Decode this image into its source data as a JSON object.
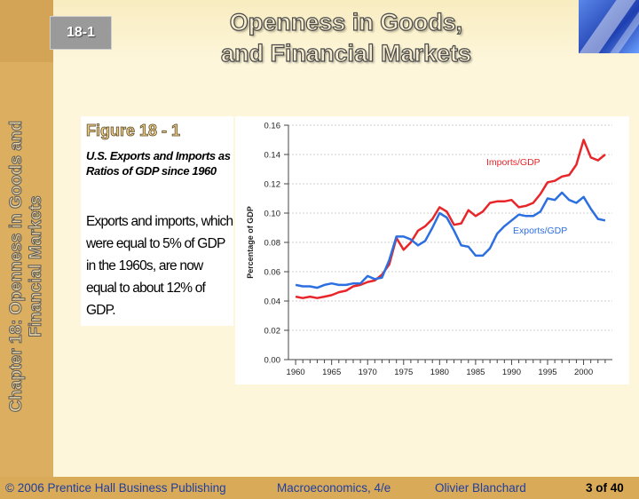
{
  "slide": {
    "number": "18-1",
    "title_line1": "Openness in Goods,",
    "title_line2": "and Financial Markets",
    "side_title_line1": "Chapter 18: Openness in Goods and",
    "side_title_line2": "Financial Markets"
  },
  "caption": {
    "figure_label": "Figure 18 - 1",
    "subtitle": "U.S. Exports and Imports as Ratios of GDP since 1960",
    "description": "Exports and imports, which were equal to 5% of GDP in the 1960s, are now equal to about 12% of GDP."
  },
  "footer": {
    "copyright": "© 2006 Prentice Hall Business Publishing",
    "book": "Macroeconomics, 4/e",
    "author": "Olivier Blanchard",
    "page": "3 of 40"
  },
  "colors": {
    "imports": "#e8262a",
    "exports": "#2b6fe0"
  },
  "chart_data": {
    "type": "line",
    "xlabel": "",
    "ylabel": "Percentage of GDP",
    "xlim": [
      1959,
      2004
    ],
    "ylim": [
      0,
      0.16
    ],
    "x_ticks": [
      1960,
      1965,
      1970,
      1975,
      1980,
      1985,
      1990,
      1995,
      2000
    ],
    "y_ticks": [
      "0.00",
      "0.02",
      "0.04",
      "0.06",
      "0.08",
      "0.10",
      "0.12",
      "0.14",
      "0.16"
    ],
    "grid": true,
    "x": [
      1960,
      1961,
      1962,
      1963,
      1964,
      1965,
      1966,
      1967,
      1968,
      1969,
      1970,
      1971,
      1972,
      1973,
      1974,
      1975,
      1976,
      1977,
      1978,
      1979,
      1980,
      1981,
      1982,
      1983,
      1984,
      1985,
      1986,
      1987,
      1988,
      1989,
      1990,
      1991,
      1992,
      1993,
      1994,
      1995,
      1996,
      1997,
      1998,
      1999,
      2000,
      2001,
      2002,
      2003
    ],
    "series": [
      {
        "name": "Imports/GDP",
        "color": "#e8262a",
        "values": [
          0.043,
          0.042,
          0.043,
          0.042,
          0.043,
          0.044,
          0.046,
          0.047,
          0.05,
          0.051,
          0.053,
          0.054,
          0.058,
          0.065,
          0.083,
          0.075,
          0.08,
          0.088,
          0.091,
          0.096,
          0.104,
          0.101,
          0.092,
          0.093,
          0.102,
          0.098,
          0.101,
          0.107,
          0.108,
          0.108,
          0.109,
          0.104,
          0.105,
          0.107,
          0.113,
          0.121,
          0.122,
          0.125,
          0.126,
          0.133,
          0.15,
          0.138,
          0.136,
          0.14
        ]
      },
      {
        "name": "Exports/GDP",
        "color": "#2b6fe0",
        "values": [
          0.051,
          0.05,
          0.05,
          0.049,
          0.051,
          0.052,
          0.051,
          0.051,
          0.052,
          0.052,
          0.057,
          0.055,
          0.056,
          0.068,
          0.084,
          0.084,
          0.082,
          0.078,
          0.081,
          0.09,
          0.1,
          0.097,
          0.088,
          0.078,
          0.077,
          0.071,
          0.071,
          0.076,
          0.086,
          0.091,
          0.095,
          0.099,
          0.098,
          0.098,
          0.101,
          0.11,
          0.109,
          0.114,
          0.109,
          0.107,
          0.111,
          0.103,
          0.096,
          0.095
        ]
      }
    ]
  }
}
